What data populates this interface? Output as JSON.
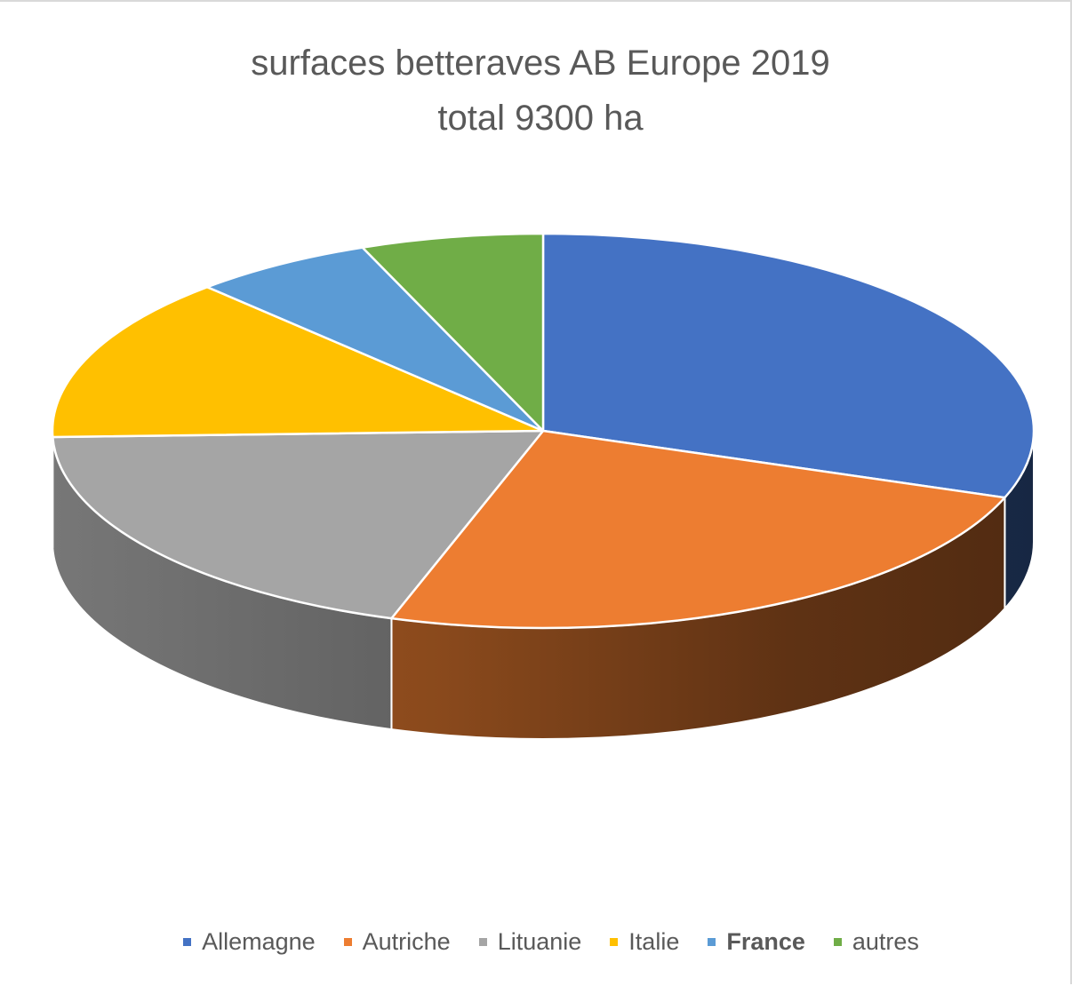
{
  "chart_data": {
    "type": "pie",
    "title": "surfaces betteraves AB Europe 2019",
    "subtitle": "total 9300 ha",
    "categories": [
      "Allemagne",
      "Autriche",
      "Lituanie",
      "Italie",
      "France",
      "autres"
    ],
    "values": [
      30.5,
      24.5,
      19.5,
      13.5,
      6,
      6
    ],
    "value_unit": "%",
    "colors": [
      "#4472c4",
      "#ed7d31",
      "#a5a5a5",
      "#ffc000",
      "#5b9bd5",
      "#70ad47"
    ],
    "start_position": "12 o'clock",
    "direction": "clockwise",
    "style": "3d",
    "legend_position": "bottom",
    "legend_bold_entries": [
      "France"
    ]
  }
}
